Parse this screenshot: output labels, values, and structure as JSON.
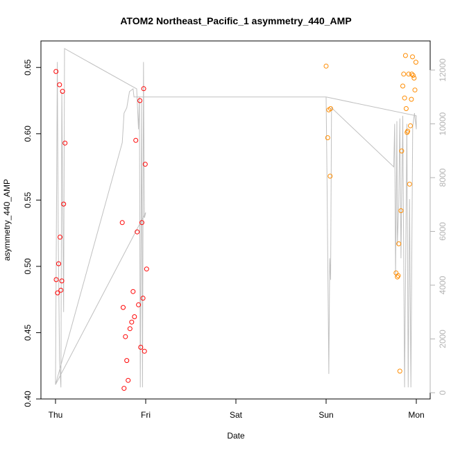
{
  "chart_data": {
    "type": "scatter",
    "title": "ATOM2 Northeast_Pacific_1 asymmetry_440_AMP",
    "xlabel": "Date",
    "ylabel": "asymmetry_440_AMP",
    "ylim": [
      0.4,
      0.67
    ],
    "xlim": [
      "Thu",
      "Mon"
    ],
    "x_ticks": [
      {
        "label": "Thu",
        "day": 0
      },
      {
        "label": "Fri",
        "day": 1
      },
      {
        "label": "Sat",
        "day": 2
      },
      {
        "label": "Sun",
        "day": 3
      },
      {
        "label": "Mon",
        "day": 4
      }
    ],
    "y_ticks": [
      "0.40",
      "0.45",
      "0.50",
      "0.55",
      "0.60",
      "0.65"
    ],
    "y2_ticks": [
      "0",
      "2000",
      "4000",
      "6000",
      "8000",
      "10000",
      "12000"
    ],
    "y2lim": [
      0,
      12500
    ],
    "grid": false,
    "series": [
      {
        "color": "#ff0000",
        "marker": "circle-open",
        "points": [
          {
            "x": 0.005,
            "y": 0.647
          },
          {
            "x": 0.008,
            "y": 0.49
          },
          {
            "x": 0.022,
            "y": 0.48
          },
          {
            "x": 0.035,
            "y": 0.502
          },
          {
            "x": 0.045,
            "y": 0.637
          },
          {
            "x": 0.05,
            "y": 0.522
          },
          {
            "x": 0.06,
            "y": 0.482
          },
          {
            "x": 0.07,
            "y": 0.489
          },
          {
            "x": 0.078,
            "y": 0.632
          },
          {
            "x": 0.09,
            "y": 0.547
          },
          {
            "x": 0.105,
            "y": 0.593
          },
          {
            "x": 0.74,
            "y": 0.533
          },
          {
            "x": 0.75,
            "y": 0.469
          },
          {
            "x": 0.76,
            "y": 0.408
          },
          {
            "x": 0.775,
            "y": 0.447
          },
          {
            "x": 0.79,
            "y": 0.429
          },
          {
            "x": 0.805,
            "y": 0.414
          },
          {
            "x": 0.825,
            "y": 0.453
          },
          {
            "x": 0.845,
            "y": 0.458
          },
          {
            "x": 0.86,
            "y": 0.481
          },
          {
            "x": 0.875,
            "y": 0.462
          },
          {
            "x": 0.89,
            "y": 0.595
          },
          {
            "x": 0.905,
            "y": 0.526
          },
          {
            "x": 0.92,
            "y": 0.471
          },
          {
            "x": 0.935,
            "y": 0.625
          },
          {
            "x": 0.945,
            "y": 0.439
          },
          {
            "x": 0.958,
            "y": 0.533
          },
          {
            "x": 0.97,
            "y": 0.476
          },
          {
            "x": 0.978,
            "y": 0.634
          },
          {
            "x": 0.986,
            "y": 0.436
          },
          {
            "x": 0.995,
            "y": 0.577
          },
          {
            "x": 1.01,
            "y": 0.498
          }
        ]
      },
      {
        "color": "#ff8c00",
        "marker": "circle-open",
        "points": [
          {
            "x": 3.0,
            "y": 0.651
          },
          {
            "x": 3.018,
            "y": 0.597
          },
          {
            "x": 3.03,
            "y": 0.618
          },
          {
            "x": 3.045,
            "y": 0.568
          },
          {
            "x": 3.05,
            "y": 0.619
          },
          {
            "x": 3.775,
            "y": 0.495
          },
          {
            "x": 3.79,
            "y": 0.492
          },
          {
            "x": 3.8,
            "y": 0.493
          },
          {
            "x": 3.805,
            "y": 0.517
          },
          {
            "x": 3.818,
            "y": 0.421
          },
          {
            "x": 3.83,
            "y": 0.542
          },
          {
            "x": 3.838,
            "y": 0.587
          },
          {
            "x": 3.85,
            "y": 0.636
          },
          {
            "x": 3.86,
            "y": 0.645
          },
          {
            "x": 3.87,
            "y": 0.627
          },
          {
            "x": 3.88,
            "y": 0.659
          },
          {
            "x": 3.888,
            "y": 0.619
          },
          {
            "x": 3.898,
            "y": 0.601
          },
          {
            "x": 3.905,
            "y": 0.602
          },
          {
            "x": 3.915,
            "y": 0.645
          },
          {
            "x": 3.925,
            "y": 0.562
          },
          {
            "x": 3.935,
            "y": 0.606
          },
          {
            "x": 3.945,
            "y": 0.626
          },
          {
            "x": 3.95,
            "y": 0.645
          },
          {
            "x": 3.958,
            "y": 0.658
          },
          {
            "x": 3.965,
            "y": 0.644
          },
          {
            "x": 3.975,
            "y": 0.642
          },
          {
            "x": 3.985,
            "y": 0.633
          },
          {
            "x": 3.995,
            "y": 0.654
          }
        ]
      }
    ],
    "secondary_line": {
      "color": "#c0c0c0",
      "points": [
        {
          "x": 0.0,
          "y2": 300
        },
        {
          "x": 0.02,
          "y2": 12300
        },
        {
          "x": 0.03,
          "y2": 6000
        },
        {
          "x": 0.045,
          "y2": 1200
        },
        {
          "x": 0.06,
          "y2": 200
        },
        {
          "x": 0.07,
          "y2": 11200
        },
        {
          "x": 0.08,
          "y2": 7000
        },
        {
          "x": 0.09,
          "y2": 3000
        },
        {
          "x": 0.1,
          "y2": 12800
        },
        {
          "x": 0.9,
          "y2": 11300
        },
        {
          "x": 0.92,
          "y2": 9800
        },
        {
          "x": 0.93,
          "y2": 11000
        },
        {
          "x": 0.94,
          "y2": 200
        },
        {
          "x": 0.955,
          "y2": 10800
        },
        {
          "x": 0.965,
          "y2": 200
        },
        {
          "x": 0.975,
          "y2": 12300
        },
        {
          "x": 0.985,
          "y2": 6500
        },
        {
          "x": 1.0,
          "y2": 6700
        },
        {
          "x": 0.0,
          "y2": 300
        },
        {
          "x": 0.74,
          "y2": 9300
        },
        {
          "x": 0.76,
          "y2": 10400
        },
        {
          "x": 0.79,
          "y2": 10600
        },
        {
          "x": 0.82,
          "y2": 11200
        },
        {
          "x": 0.86,
          "y2": 11300
        },
        {
          "x": 0.87,
          "y2": 11000
        },
        {
          "x": 3.0,
          "y2": 11000
        },
        {
          "x": 3.01,
          "y2": 8000
        },
        {
          "x": 3.03,
          "y2": 700
        },
        {
          "x": 3.04,
          "y2": 5000
        },
        {
          "x": 3.05,
          "y2": 4200
        },
        {
          "x": 3.06,
          "y2": 10600
        },
        {
          "x": 3.75,
          "y2": 8400
        },
        {
          "x": 3.76,
          "y2": 10000
        },
        {
          "x": 3.77,
          "y2": 4300
        },
        {
          "x": 3.785,
          "y2": 10100
        },
        {
          "x": 3.79,
          "y2": 5500
        },
        {
          "x": 3.805,
          "y2": 7000
        },
        {
          "x": 3.818,
          "y2": 10200
        },
        {
          "x": 3.83,
          "y2": 5000
        },
        {
          "x": 3.85,
          "y2": 10300
        },
        {
          "x": 3.87,
          "y2": 200
        },
        {
          "x": 3.895,
          "y2": 10000
        },
        {
          "x": 3.91,
          "y2": 200
        },
        {
          "x": 3.925,
          "y2": 7200
        },
        {
          "x": 3.94,
          "y2": 200
        },
        {
          "x": 3.96,
          "y2": 9900
        },
        {
          "x": 3.98,
          "y2": 10400
        },
        {
          "x": 4.0,
          "y2": 9800
        },
        {
          "x": 4.0,
          "y2": 10300
        },
        {
          "x": 3.0,
          "y2": 11000
        }
      ]
    }
  }
}
